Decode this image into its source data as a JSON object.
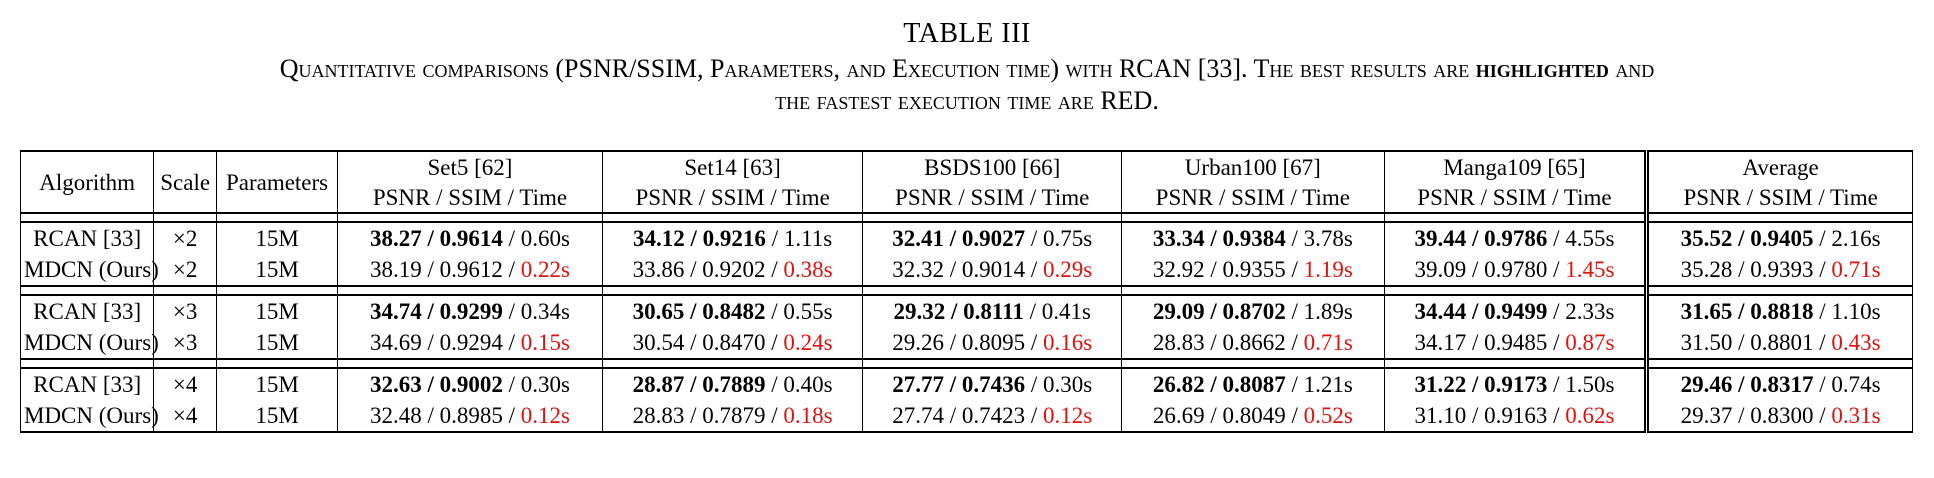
{
  "caption": {
    "table_number": "TABLE III",
    "line1": "Quantitative comparisons (PSNR/SSIM, Parameters, and Execution time) with RCAN [33]. The best results are",
    "line1_bold": "highlighted",
    "line1_end": "and",
    "line2": "the fastest execution time are RED."
  },
  "table": {
    "col_algorithm": "Algorithm",
    "col_scale": "Scale",
    "col_parameters": "Parameters",
    "datasets": [
      "Set5 [62]",
      "Set14 [63]",
      "BSDS100 [66]",
      "Urban100 [67]",
      "Manga109 [65]",
      "Average"
    ],
    "metric_header": "PSNR / SSIM / Time",
    "groups": [
      {
        "rows": [
          {
            "algorithm": "RCAN [33]",
            "scale": "×2",
            "params": "15M",
            "cells": [
              {
                "ps": "38.27 / 0.9614",
                "time": " / 0.60s",
                "bold": true,
                "red": false
              },
              {
                "ps": "34.12 / 0.9216",
                "time": " / 1.11s",
                "bold": true,
                "red": false
              },
              {
                "ps": "32.41 / 0.9027",
                "time": " / 0.75s",
                "bold": true,
                "red": false
              },
              {
                "ps": "33.34 / 0.9384",
                "time": " / 3.78s",
                "bold": true,
                "red": false
              },
              {
                "ps": "39.44 / 0.9786",
                "time": " / 4.55s",
                "bold": true,
                "red": false
              },
              {
                "ps": "35.52 / 0.9405",
                "time": " / 2.16s",
                "bold": true,
                "red": false
              }
            ]
          },
          {
            "algorithm": "MDCN (Ours)",
            "scale": "×2",
            "params": "15M",
            "cells": [
              {
                "ps": "38.19 / 0.9612 / ",
                "time": "0.22s",
                "bold": false,
                "red": true
              },
              {
                "ps": "33.86 / 0.9202 / ",
                "time": "0.38s",
                "bold": false,
                "red": true
              },
              {
                "ps": "32.32 / 0.9014 / ",
                "time": "0.29s",
                "bold": false,
                "red": true
              },
              {
                "ps": "32.92 / 0.9355 / ",
                "time": "1.19s",
                "bold": false,
                "red": true
              },
              {
                "ps": "39.09 / 0.9780 / ",
                "time": "1.45s",
                "bold": false,
                "red": true
              },
              {
                "ps": "35.28 / 0.9393 / ",
                "time": "0.71s",
                "bold": false,
                "red": true
              }
            ]
          }
        ]
      },
      {
        "rows": [
          {
            "algorithm": "RCAN [33]",
            "scale": "×3",
            "params": "15M",
            "cells": [
              {
                "ps": "34.74 / 0.9299",
                "time": " / 0.34s",
                "bold": true,
                "red": false
              },
              {
                "ps": "30.65 / 0.8482",
                "time": " / 0.55s",
                "bold": true,
                "red": false
              },
              {
                "ps": "29.32 / 0.8111",
                "time": " / 0.41s",
                "bold": true,
                "red": false
              },
              {
                "ps": "29.09 / 0.8702",
                "time": " / 1.89s",
                "bold": true,
                "red": false
              },
              {
                "ps": "34.44 / 0.9499",
                "time": " / 2.33s",
                "bold": true,
                "red": false
              },
              {
                "ps": "31.65 / 0.8818",
                "time": " / 1.10s",
                "bold": true,
                "red": false
              }
            ]
          },
          {
            "algorithm": "MDCN (Ours)",
            "scale": "×3",
            "params": "15M",
            "cells": [
              {
                "ps": "34.69 / 0.9294 / ",
                "time": "0.15s",
                "bold": false,
                "red": true
              },
              {
                "ps": "30.54 / 0.8470 / ",
                "time": "0.24s",
                "bold": false,
                "red": true
              },
              {
                "ps": "29.26 / 0.8095 / ",
                "time": "0.16s",
                "bold": false,
                "red": true
              },
              {
                "ps": "28.83 / 0.8662 / ",
                "time": "0.71s",
                "bold": false,
                "red": true
              },
              {
                "ps": "34.17 / 0.9485 / ",
                "time": "0.87s",
                "bold": false,
                "red": true
              },
              {
                "ps": "31.50 / 0.8801 / ",
                "time": "0.43s",
                "bold": false,
                "red": true
              }
            ]
          }
        ]
      },
      {
        "rows": [
          {
            "algorithm": "RCAN [33]",
            "scale": "×4",
            "params": "15M",
            "cells": [
              {
                "ps": "32.63 / 0.9002",
                "time": " / 0.30s",
                "bold": true,
                "red": false
              },
              {
                "ps": "28.87 / 0.7889",
                "time": " / 0.40s",
                "bold": true,
                "red": false
              },
              {
                "ps": "27.77 / 0.7436",
                "time": " / 0.30s",
                "bold": true,
                "red": false
              },
              {
                "ps": "26.82 / 0.8087",
                "time": " / 1.21s",
                "bold": true,
                "red": false
              },
              {
                "ps": "31.22 / 0.9173",
                "time": " / 1.50s",
                "bold": true,
                "red": false
              },
              {
                "ps": "29.46 / 0.8317",
                "time": " / 0.74s",
                "bold": true,
                "red": false
              }
            ]
          },
          {
            "algorithm": "MDCN (Ours)",
            "scale": "×4",
            "params": "15M",
            "cells": [
              {
                "ps": "32.48 / 0.8985 / ",
                "time": "0.12s",
                "bold": false,
                "red": true
              },
              {
                "ps": "28.83 / 0.7879 / ",
                "time": "0.18s",
                "bold": false,
                "red": true
              },
              {
                "ps": "27.74 / 0.7423 / ",
                "time": "0.12s",
                "bold": false,
                "red": true
              },
              {
                "ps": "26.69 / 0.8049 / ",
                "time": "0.52s",
                "bold": false,
                "red": true
              },
              {
                "ps": "31.10 / 0.9163 / ",
                "time": "0.62s",
                "bold": false,
                "red": true
              },
              {
                "ps": "29.37 / 0.8300 / ",
                "time": "0.31s",
                "bold": false,
                "red": true
              }
            ]
          }
        ]
      }
    ]
  }
}
